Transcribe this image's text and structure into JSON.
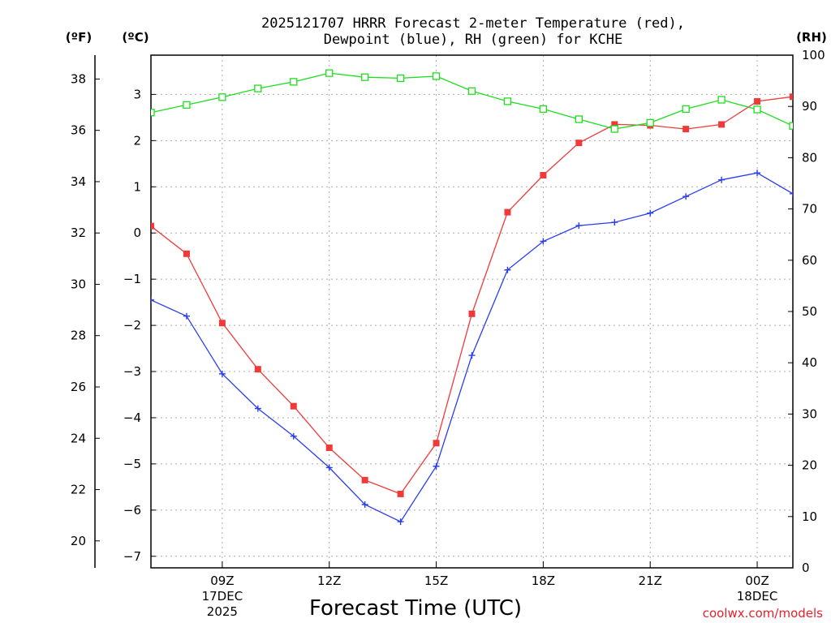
{
  "chart_data": {
    "type": "line",
    "title_line1": "2025121707 HRRR Forecast 2-meter Temperature (red),",
    "title_line2": "Dewpoint (blue), RH (green) for KCHE",
    "xlabel": "Forecast Time (UTC)",
    "credit": "coolwx.com/models",
    "unit_f": "(ºF)",
    "unit_c": "(ºC)",
    "unit_rh": "(RH)",
    "x_hours": [
      7,
      8,
      9,
      10,
      11,
      12,
      13,
      14,
      15,
      16,
      17,
      18,
      19,
      20,
      21,
      22,
      23,
      24,
      25
    ],
    "xlim": [
      7,
      25
    ],
    "x_ticks": [
      {
        "hour": 9,
        "label": "09Z",
        "line2": "17DEC",
        "line3": "2025"
      },
      {
        "hour": 12,
        "label": "12Z",
        "line2": "",
        "line3": ""
      },
      {
        "hour": 15,
        "label": "15Z",
        "line2": "",
        "line3": ""
      },
      {
        "hour": 18,
        "label": "18Z",
        "line2": "",
        "line3": ""
      },
      {
        "hour": 21,
        "label": "21Z",
        "line2": "",
        "line3": ""
      },
      {
        "hour": 24,
        "label": "00Z",
        "line2": "18DEC",
        "line3": ""
      }
    ],
    "ylim_c": [
      -7.25,
      3.85
    ],
    "yticks_c": [
      -7,
      -6,
      -5,
      -4,
      -3,
      -2,
      -1,
      0,
      1,
      2,
      3
    ],
    "yticks_f": [
      20,
      22,
      24,
      26,
      28,
      30,
      32,
      34,
      36,
      38
    ],
    "ylim_rh": [
      0,
      100
    ],
    "yticks_rh": [
      0,
      10,
      20,
      30,
      40,
      50,
      60,
      70,
      80,
      90,
      100
    ],
    "series": [
      {
        "name": "Temperature",
        "color": "#f03a3a",
        "marker": "square-filled",
        "axis": "celsius",
        "values": [
          0.15,
          -0.45,
          -1.95,
          -2.95,
          -3.75,
          -4.65,
          -5.35,
          -5.65,
          -4.55,
          -1.75,
          0.45,
          1.25,
          1.95,
          2.35,
          2.33,
          2.25,
          2.35,
          2.85,
          2.95
        ]
      },
      {
        "name": "Dewpoint",
        "color": "#2a3cf0",
        "marker": "plus",
        "axis": "celsius",
        "values": [
          -1.45,
          -1.8,
          -3.05,
          -3.8,
          -4.4,
          -5.08,
          -5.88,
          -6.25,
          -5.05,
          -2.65,
          -0.8,
          -0.18,
          0.16,
          0.23,
          0.43,
          0.79,
          1.15,
          1.3,
          0.85
        ]
      },
      {
        "name": "RH",
        "color": "#1ede1e",
        "marker": "square-open",
        "axis": "rh",
        "values": [
          88.8,
          90.3,
          91.8,
          93.5,
          94.8,
          96.5,
          95.7,
          95.5,
          95.9,
          93.0,
          91.0,
          89.5,
          87.5,
          85.6,
          86.8,
          89.5,
          91.3,
          89.4,
          86.2
        ]
      }
    ]
  }
}
